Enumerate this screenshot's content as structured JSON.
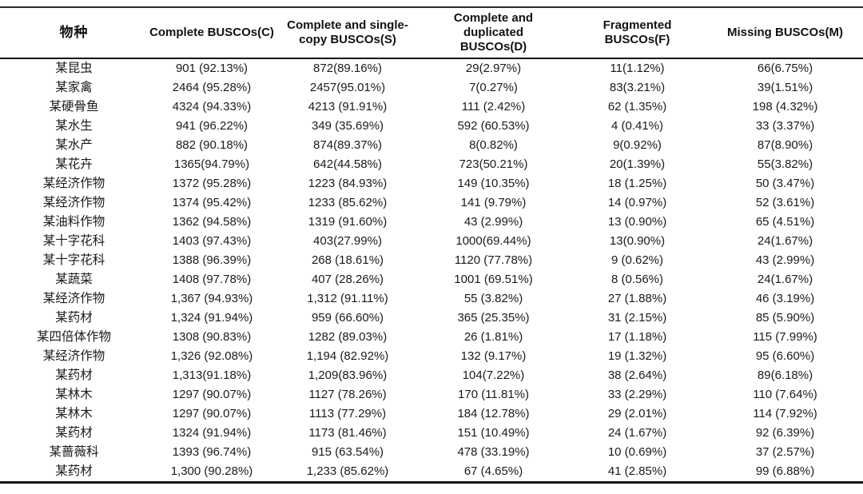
{
  "page": {
    "background": "#ffffff",
    "text_color": "#1a1a1a",
    "rule_color": "#161616"
  },
  "table": {
    "headers": [
      {
        "label": "物种"
      },
      {
        "label": "Complete BUSCOs(C)"
      },
      {
        "label": "Complete and single-copy BUSCOs(S)"
      },
      {
        "label": "Complete and duplicated BUSCOs(D)"
      },
      {
        "label": "Fragmented BUSCOs(F)"
      },
      {
        "label": "Missing BUSCOs(M)"
      }
    ],
    "rows": [
      [
        "某昆虫",
        "901 (92.13%)",
        "872(89.16%)",
        "29(2.97%)",
        "11(1.12%)",
        "66(6.75%)"
      ],
      [
        "某家禽",
        "2464 (95.28%)",
        "2457(95.01%)",
        "7(0.27%)",
        "83(3.21%)",
        "39(1.51%)"
      ],
      [
        "某硬骨鱼",
        "4324 (94.33%)",
        "4213 (91.91%)",
        "111 (2.42%)",
        "62 (1.35%)",
        "198 (4.32%)"
      ],
      [
        "某水生",
        "941 (96.22%)",
        "349 (35.69%)",
        "592 (60.53%)",
        "4 (0.41%)",
        "33 (3.37%)"
      ],
      [
        "某水产",
        "882 (90.18%)",
        "874(89.37%)",
        "8(0.82%)",
        "9(0.92%)",
        "87(8.90%)"
      ],
      [
        "某花卉",
        "1365(94.79%)",
        "642(44.58%)",
        "723(50.21%)",
        "20(1.39%)",
        "55(3.82%)"
      ],
      [
        "某经济作物",
        "1372 (95.28%)",
        "1223 (84.93%)",
        "149 (10.35%)",
        "18 (1.25%)",
        "50 (3.47%)"
      ],
      [
        "某经济作物",
        "1374 (95.42%)",
        "1233 (85.62%)",
        "141 (9.79%)",
        "14 (0.97%)",
        "52 (3.61%)"
      ],
      [
        "某油料作物",
        "1362 (94.58%)",
        "1319 (91.60%)",
        "43 (2.99%)",
        "13 (0.90%)",
        "65 (4.51%)"
      ],
      [
        "某十字花科",
        "1403 (97.43%)",
        "403(27.99%)",
        "1000(69.44%)",
        "13(0.90%)",
        "24(1.67%)"
      ],
      [
        "某十字花科",
        "1388 (96.39%)",
        "268 (18.61%)",
        "1120 (77.78%)",
        "9 (0.62%)",
        "43 (2.99%)"
      ],
      [
        "某蔬菜",
        "1408 (97.78%)",
        "407 (28.26%)",
        "1001 (69.51%)",
        "8 (0.56%)",
        "24(1.67%)"
      ],
      [
        "某经济作物",
        "1,367 (94.93%)",
        "1,312 (91.11%)",
        "55 (3.82%)",
        "27 (1.88%)",
        "46 (3.19%)"
      ],
      [
        "某药材",
        "1,324 (91.94%)",
        "959 (66.60%)",
        "365 (25.35%)",
        "31 (2.15%)",
        "85 (5.90%)"
      ],
      [
        "某四倍体作物",
        "1308 (90.83%)",
        "1282 (89.03%)",
        "26 (1.81%)",
        "17 (1.18%)",
        "115 (7.99%)"
      ],
      [
        "某经济作物",
        "1,326 (92.08%)",
        "1,194 (82.92%)",
        "132 (9.17%)",
        "19 (1.32%)",
        "95 (6.60%)"
      ],
      [
        "某药材",
        "1,313(91.18%)",
        "1,209(83.96%)",
        "104(7.22%)",
        "38 (2.64%)",
        "89(6.18%)"
      ],
      [
        "某林木",
        "1297 (90.07%)",
        "1127 (78.26%)",
        "170 (11.81%)",
        "33 (2.29%)",
        "110 (7.64%)"
      ],
      [
        "某林木",
        "1297 (90.07%)",
        "1113 (77.29%)",
        "184 (12.78%)",
        "29 (2.01%)",
        "114 (7.92%)"
      ],
      [
        "某药材",
        "1324 (91.94%)",
        "1173 (81.46%)",
        "151 (10.49%)",
        "24 (1.67%)",
        "92 (6.39%)"
      ],
      [
        "某蔷薇科",
        "1393 (96.74%)",
        "915 (63.54%)",
        "478 (33.19%)",
        "10 (0.69%)",
        "37 (2.57%)"
      ],
      [
        "某药材",
        "1,300 (90.28%)",
        "1,233 (85.62%)",
        "67 (4.65%)",
        "41 (2.85%)",
        "99 (6.88%)"
      ]
    ]
  }
}
